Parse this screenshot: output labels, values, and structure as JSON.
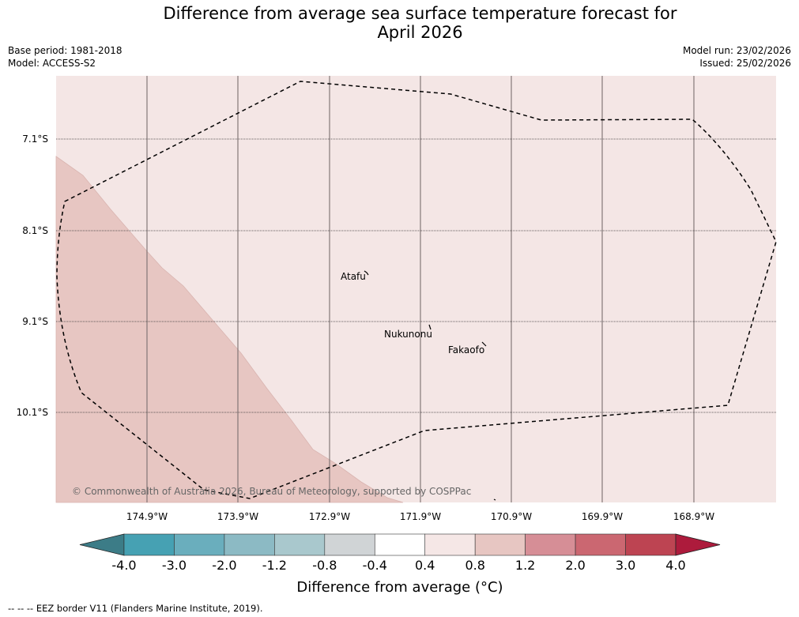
{
  "title_line1": "Difference from average sea surface temperature forecast for",
  "title_line2": "April 2026",
  "base_period": "Base period: 1981-2018",
  "model": "Model: ACCESS-S2",
  "model_run": "Model run: 23/02/2026",
  "issued": "Issued: 25/02/2026",
  "lat_labels": [
    "7.1°S",
    "8.1°S",
    "9.1°S",
    "10.1°S"
  ],
  "lon_labels": [
    "174.9°W",
    "173.9°W",
    "172.9°W",
    "171.9°W",
    "170.9°W",
    "169.9°W",
    "168.9°W"
  ],
  "places": [
    "Atafu",
    "Nukunonu",
    "Fakaofo"
  ],
  "copyright": "© Commonwealth of Australia 2026, Bureau of Meteorology, supported by COSPPac",
  "colorbar": {
    "ticks": [
      "-4.0",
      "-3.0",
      "-2.0",
      "-1.2",
      "-0.8",
      "-0.4",
      "0.4",
      "0.8",
      "1.2",
      "2.0",
      "3.0",
      "4.0"
    ],
    "colors": [
      "#46a1b3",
      "#6aaebd",
      "#8cbac4",
      "#a9c8cd",
      "#d0d4d6",
      "#ffffff",
      "#f5e7e6",
      "#e7c6c2",
      "#d68e96",
      "#cb6771",
      "#bd4452"
    ],
    "under_color": "#3c7c87",
    "over_color": "#ad1b3c",
    "label": "Difference from average (°C)"
  },
  "map_colors": {
    "background_anomaly": "#f4e6e5",
    "warmer_anomaly": "#e7c6c2"
  },
  "legend_footnote": "--  --  -- EEZ border V11 (Flanders Marine Institute, 2019)."
}
